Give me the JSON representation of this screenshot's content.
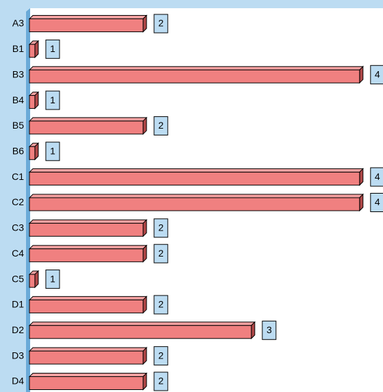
{
  "chart_data": {
    "type": "bar",
    "orientation": "horizontal",
    "categories": [
      "A3",
      "B1",
      "B3",
      "B4",
      "B5",
      "B6",
      "C1",
      "C2",
      "C3",
      "C4",
      "C5",
      "D1",
      "D2",
      "D3",
      "D4"
    ],
    "values": [
      2,
      1,
      4,
      1,
      2,
      1,
      4,
      4,
      2,
      2,
      1,
      2,
      3,
      2,
      2
    ],
    "color": "#f08080",
    "xlim": [
      0.95,
      4.4
    ]
  }
}
